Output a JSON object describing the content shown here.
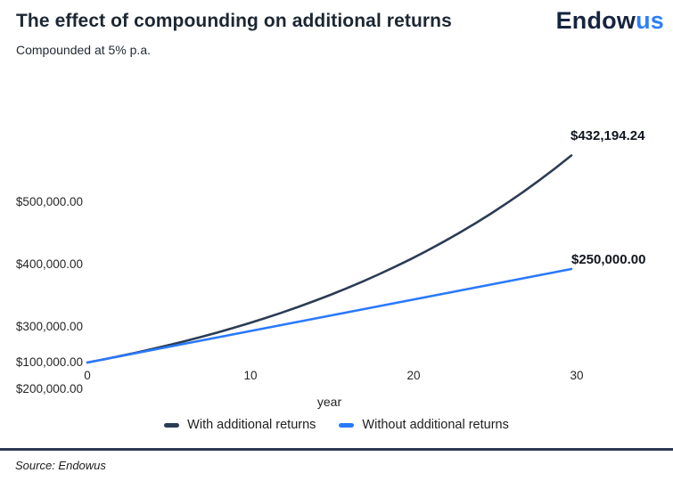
{
  "header": {
    "title": "The effect of compounding on additional returns",
    "subtitle": "Compounded at 5% p.a.",
    "logo": {
      "part1": "Endow",
      "part2": "us",
      "part1_color": "#16243f",
      "part2_color": "#2d7ff9"
    }
  },
  "chart_data": {
    "type": "line",
    "title": "The effect of compounding on additional returns",
    "subtitle": "Compounded at 5% p.a.",
    "xlabel": "year",
    "ylabel": "",
    "xlim": [
      0,
      30
    ],
    "ylim": [
      100000,
      500000
    ],
    "grid": false,
    "legend_position": "bottom",
    "xticks": [
      "0",
      "10",
      "20",
      "30"
    ],
    "yticks": [
      "$500,000.00",
      "$400,000.00",
      "$300,000.00",
      "$200,000.00",
      "$100,000.00"
    ],
    "x": [
      0,
      1,
      2,
      3,
      4,
      5,
      6,
      7,
      8,
      9,
      10,
      11,
      12,
      13,
      14,
      15,
      16,
      17,
      18,
      19,
      20,
      21,
      22,
      23,
      24,
      25,
      26,
      27,
      28,
      29,
      30
    ],
    "series": [
      {
        "name": "With additional returns",
        "color": "#2b3c55",
        "end_label": "$432,194.24",
        "values": [
          100000.0,
          105000.0,
          110250.0,
          115762.5,
          121550.63,
          127628.16,
          134009.56,
          140710.04,
          147745.54,
          155132.82,
          162889.46,
          171033.94,
          179585.63,
          188564.91,
          197993.16,
          207892.82,
          218287.46,
          229201.83,
          240661.92,
          252695.02,
          265329.77,
          278596.26,
          292526.07,
          307152.38,
          322509.99,
          338635.49,
          355567.27,
          373345.63,
          392012.91,
          411613.56,
          432194.24
        ]
      },
      {
        "name": "Without additional returns",
        "color": "#2979ff",
        "end_label": "$250,000.00",
        "values": [
          100000,
          105000,
          110000,
          115000,
          120000,
          125000,
          130000,
          135000,
          140000,
          145000,
          150000,
          155000,
          160000,
          165000,
          170000,
          175000,
          180000,
          185000,
          190000,
          195000,
          200000,
          205000,
          210000,
          215000,
          220000,
          225000,
          230000,
          235000,
          240000,
          245000,
          250000
        ]
      }
    ]
  },
  "footer": {
    "source": "Source: Endowus",
    "divider_color": "#2c3a52"
  }
}
